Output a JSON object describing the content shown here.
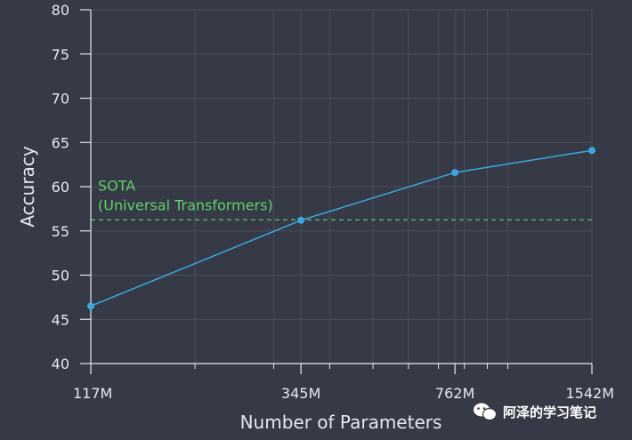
{
  "chart_data": {
    "type": "line",
    "xlabel": "Number of Parameters",
    "ylabel": "Accuracy",
    "x_scale": "log",
    "x": [
      117,
      345,
      762,
      1542
    ],
    "x_tick_labels": [
      "117M",
      "345M",
      "762M",
      "1542M"
    ],
    "ylim": [
      40,
      80
    ],
    "y_ticks": [
      40,
      45,
      50,
      55,
      60,
      65,
      70,
      75,
      80
    ],
    "grid": true,
    "series": [
      {
        "values": [
          46.5,
          56.2,
          61.6,
          64.1
        ],
        "color": "#3aa8e0"
      }
    ],
    "reference_line": {
      "value": 56.25,
      "label_lines": [
        "SOTA",
        "(Universal Transformers)"
      ],
      "color": "#5fd06a"
    }
  },
  "colors": {
    "background": "#363a46",
    "grid": "#4a4f5c",
    "axis": "#e6e8ee"
  },
  "watermark": {
    "text": "阿泽的学习笔记",
    "icon": "wechat-icon"
  }
}
